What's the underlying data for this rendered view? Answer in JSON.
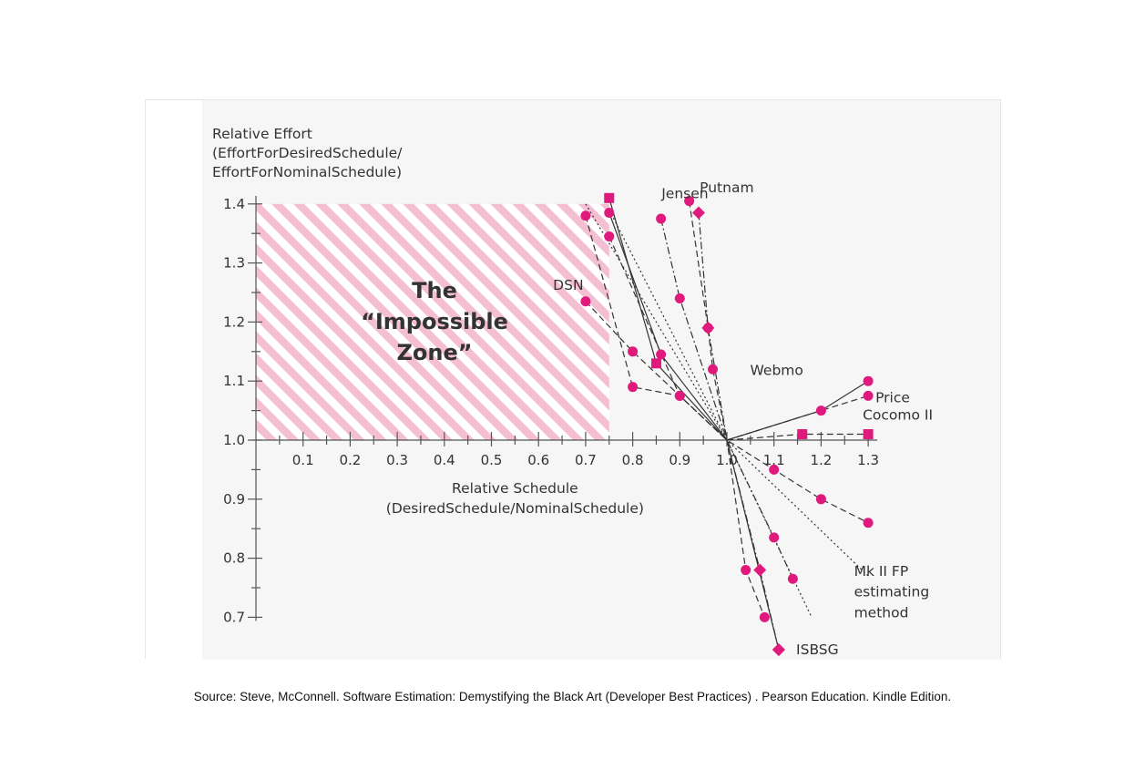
{
  "caption": "Source: Steve, McConnell. Software Estimation: Demystifying the Black Art (Developer Best Practices) . Pearson Education. Kindle Edition.",
  "chart_data": {
    "type": "line",
    "title": "",
    "ylabel_lines": [
      "Relative Effort",
      "(EffortForDesiredSchedule/",
      "EffortForNominalSchedule)"
    ],
    "xlabel_lines": [
      "Relative Schedule",
      "(DesiredSchedule/NominalSchedule)"
    ],
    "xlim": [
      0.0,
      1.3
    ],
    "ylim": [
      0.7,
      1.4
    ],
    "x_ticks": [
      0.1,
      0.2,
      0.3,
      0.4,
      0.5,
      0.6,
      0.7,
      0.8,
      0.9,
      1.0,
      1.1,
      1.2,
      1.3
    ],
    "x_tick_labels": [
      "0.1",
      "0.2",
      "0.3",
      "0.4",
      "0.5",
      "0.6",
      "0.7",
      "0.8",
      "0.9",
      "1.0",
      "1.1",
      "1.2",
      "1.3"
    ],
    "y_ticks": [
      0.7,
      0.8,
      0.9,
      1.0,
      1.1,
      1.2,
      1.3,
      1.4
    ],
    "y_tick_labels": [
      "0.7",
      "0.8",
      "0.9",
      "1.0",
      "1.1",
      "1.2",
      "1.3",
      "1.4"
    ],
    "impossible_zone": {
      "x": [
        0.0,
        0.75
      ],
      "y": [
        1.0,
        1.4
      ],
      "label_lines": [
        "The",
        "“Impossible",
        "Zone”"
      ],
      "stripe_color": "#f5bfd3"
    },
    "marker_color": "#e0197d",
    "line_color": "#333333",
    "series": [
      {
        "name": "Jensen",
        "dash": "dashdot",
        "marker": "circle",
        "points": [
          [
            0.86,
            1.375
          ],
          [
            0.9,
            1.24
          ],
          [
            1.0,
            1.0
          ],
          [
            1.1,
            0.835
          ],
          [
            1.14,
            0.765
          ]
        ]
      },
      {
        "name": "Putnam",
        "dash": "dash",
        "marker": "circle",
        "points": [
          [
            0.92,
            1.405
          ],
          [
            0.96,
            1.19
          ],
          [
            0.97,
            1.12
          ],
          [
            1.0,
            1.0
          ],
          [
            1.04,
            0.78
          ],
          [
            1.08,
            0.7
          ]
        ]
      },
      {
        "name": "",
        "dash": "dashdot",
        "marker": "diamond",
        "points": [
          [
            0.94,
            1.385
          ],
          [
            0.96,
            1.19
          ],
          [
            1.0,
            1.0
          ],
          [
            1.07,
            0.78
          ],
          [
            1.11,
            0.645
          ]
        ]
      },
      {
        "name": "DSN",
        "dash": "dash",
        "marker": "circle",
        "points": [
          [
            0.7,
            1.235
          ],
          [
            0.8,
            1.15
          ],
          [
            1.0,
            1.0
          ],
          [
            1.1,
            0.95
          ],
          [
            1.2,
            0.9
          ],
          [
            1.3,
            0.86
          ]
        ]
      },
      {
        "name": "",
        "dash": "dash",
        "marker": "circle",
        "points": [
          [
            0.7,
            1.38
          ],
          [
            0.8,
            1.09
          ],
          [
            0.9,
            1.075
          ],
          [
            1.0,
            1.0
          ]
        ]
      },
      {
        "name": "",
        "dash": "solid",
        "marker": "circle",
        "points": [
          [
            0.75,
            1.385
          ],
          [
            0.86,
            1.145
          ],
          [
            1.0,
            1.0
          ]
        ]
      },
      {
        "name": "",
        "dash": "solid",
        "marker": "square",
        "points": [
          [
            0.75,
            1.41
          ],
          [
            0.85,
            1.13
          ],
          [
            1.0,
            1.0
          ]
        ]
      },
      {
        "name": "",
        "dash": "dash",
        "marker": "circle",
        "points": [
          [
            0.75,
            1.345
          ],
          [
            0.9,
            1.075
          ],
          [
            1.0,
            1.0
          ]
        ]
      },
      {
        "name": "",
        "dash": "dot",
        "marker": "none",
        "points": [
          [
            0.75,
            1.39
          ],
          [
            1.0,
            1.0
          ],
          [
            1.18,
            0.7
          ]
        ]
      },
      {
        "name": "Mk II FP estimating method",
        "dash": "dot",
        "marker": "none",
        "points": [
          [
            0.7,
            1.4
          ],
          [
            1.0,
            1.0
          ],
          [
            1.3,
            0.77
          ]
        ]
      },
      {
        "name": "Webmo",
        "dash": "solid",
        "marker": "circle",
        "points": [
          [
            1.0,
            1.0
          ],
          [
            1.2,
            1.05
          ],
          [
            1.3,
            1.1
          ]
        ]
      },
      {
        "name": "Price",
        "dash": "dash",
        "marker": "circle",
        "points": [
          [
            1.0,
            1.0
          ],
          [
            1.3,
            1.075
          ]
        ]
      },
      {
        "name": "Cocomo II",
        "dash": "dash",
        "marker": "square",
        "points": [
          [
            1.0,
            1.0
          ],
          [
            1.16,
            1.01
          ],
          [
            1.3,
            1.01
          ]
        ]
      },
      {
        "name": "ISBSG",
        "dash": "solid",
        "marker": "diamond",
        "points": [
          [
            1.0,
            1.0
          ],
          [
            1.11,
            0.645
          ]
        ]
      }
    ],
    "annotations": [
      {
        "text": "Jensen",
        "x": 0.86,
        "y": 1.41
      },
      {
        "text": "Putnam",
        "x": 0.95,
        "y": 1.42
      },
      {
        "text": "DSN",
        "x": 0.68,
        "y": 1.255
      },
      {
        "text": "Webmo",
        "x": 1.17,
        "y": 1.11
      },
      {
        "text": "Price",
        "x": 1.3,
        "y": 1.07
      },
      {
        "text": "Cocomo II",
        "x": 1.3,
        "y": 1.035
      },
      {
        "text": "Mk II FP",
        "x": 1.27,
        "y": 0.77
      },
      {
        "text": "estimating",
        "x": 1.27,
        "y": 0.735
      },
      {
        "text": "method",
        "x": 1.27,
        "y": 0.7
      },
      {
        "text": "ISBSG",
        "x": 1.12,
        "y": 0.645
      }
    ]
  }
}
